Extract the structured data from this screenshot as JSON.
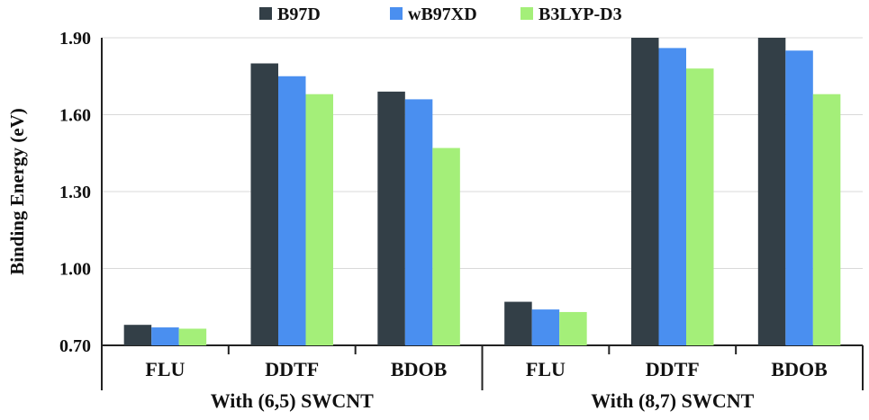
{
  "chart_data": {
    "type": "bar",
    "ylabel": "Binding Energy (eV)",
    "ylim": [
      0.7,
      1.9
    ],
    "yticks": [
      "0.70",
      "1.00",
      "1.30",
      "1.60",
      "1.90"
    ],
    "grid": true,
    "legend_position": "top",
    "groups": [
      "With (6,5) SWCNT",
      "With (8,7) SWCNT"
    ],
    "categories": [
      "FLU",
      "DDTF",
      "BDOB",
      "FLU",
      "DDTF",
      "BDOB"
    ],
    "series": [
      {
        "name": "B97D",
        "color": "#333f47",
        "values": [
          0.78,
          1.8,
          1.69,
          0.87,
          1.9,
          1.9
        ]
      },
      {
        "name": "wB97XD",
        "color": "#4a8ff0",
        "values": [
          0.77,
          1.75,
          1.66,
          0.84,
          1.86,
          1.85
        ]
      },
      {
        "name": "B3LYP-D3",
        "color": "#a4ef79",
        "values": [
          0.765,
          1.68,
          1.47,
          0.83,
          1.78,
          1.68
        ]
      }
    ]
  }
}
